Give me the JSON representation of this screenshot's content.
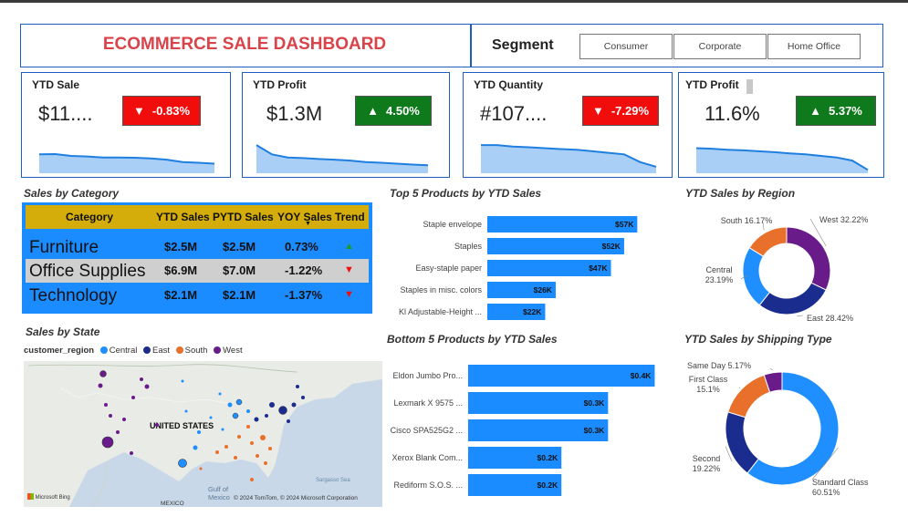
{
  "header": {
    "title": "ECOMMERCE SALE DASHBOARD"
  },
  "segment": {
    "label": "Segment",
    "options": [
      "Consumer",
      "Corporate",
      "Home Office"
    ]
  },
  "kpis": [
    {
      "title": "YTD Sale",
      "value": "$11....",
      "change": "-0.83%",
      "direction": "down",
      "trend": [
        0.55,
        0.56,
        0.5,
        0.48,
        0.45,
        0.45,
        0.44,
        0.42,
        0.38,
        0.3,
        0.28,
        0.25
      ]
    },
    {
      "title": "YTD Profit",
      "value": "$1.3M",
      "change": "4.50%",
      "direction": "up",
      "trend": [
        0.85,
        0.55,
        0.45,
        0.43,
        0.4,
        0.38,
        0.35,
        0.3,
        0.28,
        0.25,
        0.22,
        0.2
      ]
    },
    {
      "title": "YTD Quantity",
      "value": "#107....",
      "change": "-7.29%",
      "direction": "down",
      "trend": [
        0.85,
        0.85,
        0.8,
        0.78,
        0.75,
        0.72,
        0.7,
        0.65,
        0.6,
        0.55,
        0.3,
        0.15
      ]
    },
    {
      "title": "YTD Profit",
      "value": "11.6%",
      "change": "5.37%",
      "direction": "up",
      "trend": [
        0.75,
        0.73,
        0.7,
        0.68,
        0.65,
        0.62,
        0.58,
        0.55,
        0.5,
        0.45,
        0.35,
        0.05
      ]
    }
  ],
  "sales_by_category": {
    "title": "Sales by Category",
    "columns": [
      "Category",
      "YTD Sales",
      "PYTD Sales",
      "YOY Sales",
      "Trend"
    ],
    "rows": [
      {
        "category": "Furniture",
        "ytd": "$2.5M",
        "pytd": "$2.5M",
        "yoy": "0.73%",
        "trend": "up"
      },
      {
        "category": "Office Supplies",
        "ytd": "$6.9M",
        "pytd": "$7.0M",
        "yoy": "-1.22%",
        "trend": "down"
      },
      {
        "category": "Technology",
        "ytd": "$2.1M",
        "pytd": "$2.1M",
        "yoy": "-1.37%",
        "trend": "down"
      }
    ]
  },
  "sales_by_state": {
    "title": "Sales by State",
    "legend_title": "customer_region",
    "legend": [
      {
        "name": "Central",
        "color": "#1f8fff"
      },
      {
        "name": "East",
        "color": "#1b2c8f"
      },
      {
        "name": "South",
        "color": "#e8702a"
      },
      {
        "name": "West",
        "color": "#6a1b8a"
      }
    ],
    "map_labels": {
      "country": "UNITED STATES",
      "gulf": "Gulf of Mexico",
      "sea": "Sargasso Sea",
      "mexico": "MEXICO",
      "bing": "Microsoft Bing",
      "copyright": "© 2024 TomTom, © 2024 Microsoft Corporation"
    }
  },
  "chart_data": [
    {
      "type": "bar",
      "title": "Top 5 Products by YTD Sales",
      "categories": [
        "Staple envelope",
        "Staples",
        "Easy-staple paper",
        "Staples in misc. colors",
        "Kl Adjustable-Height ..."
      ],
      "values": [
        57,
        52,
        47,
        26,
        22
      ],
      "value_labels": [
        "$57K",
        "$52K",
        "$47K",
        "$26K",
        "$22K"
      ],
      "xlim": [
        0,
        60
      ],
      "color": "#1a8cff"
    },
    {
      "type": "bar",
      "title": "Bottom 5 Products by YTD Sales",
      "categories": [
        "Eldon Jumbo Pro...",
        "Lexmark X 9575 ...",
        "Cisco SPA525G2 ...",
        "Xerox Blank Com...",
        "Rediform S.O.S. ..."
      ],
      "values": [
        0.4,
        0.3,
        0.3,
        0.2,
        0.2
      ],
      "value_labels": [
        "$0.4K",
        "$0.3K",
        "$0.3K",
        "$0.2K",
        "$0.2K"
      ],
      "xlim": [
        0,
        0.45
      ],
      "color": "#1a8cff"
    },
    {
      "type": "pie",
      "title": "YTD Sales by Region",
      "categories": [
        "West",
        "East",
        "Central",
        "South"
      ],
      "values": [
        32.22,
        28.42,
        23.19,
        16.17
      ],
      "labels": [
        "West 32.22%",
        "East 28.42%",
        "Central 23.19%",
        "South 16.17%"
      ],
      "colors": [
        "#6a1b8a",
        "#1b2c8f",
        "#1f8fff",
        "#e8702a"
      ]
    },
    {
      "type": "pie",
      "title": "YTD Sales by Shipping Type",
      "categories": [
        "Standard Class",
        "Second",
        "First Class",
        "Same Day"
      ],
      "values": [
        60.51,
        19.22,
        15.1,
        5.17
      ],
      "labels": [
        "Standard Class 60.51%",
        "Second 19.22%",
        "First Class 15.1%",
        "Same Day 5.17%"
      ],
      "colors": [
        "#1f8fff",
        "#1b2c8f",
        "#e8702a",
        "#6a1b8a"
      ]
    }
  ]
}
